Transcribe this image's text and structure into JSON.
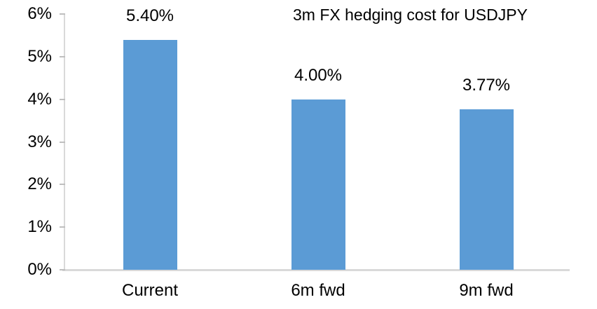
{
  "chart_data": {
    "type": "bar",
    "title": "3m FX hedging cost for USDJPY",
    "categories": [
      "Current",
      "6m fwd",
      "9m fwd"
    ],
    "values": [
      5.4,
      4.0,
      3.77
    ],
    "value_labels": [
      "5.40%",
      "4.00%",
      "3.77%"
    ],
    "xlabel": "",
    "ylabel": "",
    "ylim": [
      0,
      6
    ],
    "ytick_values": [
      0,
      1,
      2,
      3,
      4,
      5,
      6
    ],
    "ytick_labels": [
      "0%",
      "1%",
      "2%",
      "3%",
      "4%",
      "5%",
      "6%"
    ],
    "grid": false,
    "legend_position": "none",
    "colors": {
      "bar": "#5B9BD5",
      "axis_line": "#D9D9D9",
      "tick": "#BFBFBF",
      "text": "#000000",
      "background": "#FFFFFF"
    }
  }
}
